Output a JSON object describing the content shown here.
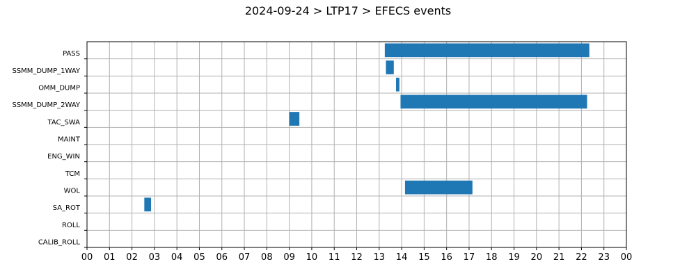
{
  "chart_data": {
    "type": "bar",
    "orientation": "horizontal",
    "subtype": "gantt",
    "title": "2024-09-24 > LTP17 > EFECS events",
    "xlabel": "",
    "ylabel": "",
    "xlim": [
      0,
      24
    ],
    "x_ticks": [
      "00",
      "01",
      "02",
      "03",
      "04",
      "05",
      "06",
      "07",
      "08",
      "09",
      "10",
      "11",
      "12",
      "13",
      "14",
      "15",
      "16",
      "17",
      "18",
      "19",
      "20",
      "21",
      "22",
      "23",
      "00"
    ],
    "categories": [
      "PASS",
      "SSMM_DUMP_1WAY",
      "OMM_DUMP",
      "SSMM_DUMP_2WAY",
      "TAC_SWA",
      "MAINT",
      "ENG_WIN",
      "TCM",
      "WOL",
      "SA_ROT",
      "ROLL",
      "CALIB_ROLL"
    ],
    "events": [
      {
        "category": "PASS",
        "start": 13.25,
        "end": 22.35
      },
      {
        "category": "SSMM_DUMP_1WAY",
        "start": 13.3,
        "end": 13.65
      },
      {
        "category": "OMM_DUMP",
        "start": 13.75,
        "end": 13.9
      },
      {
        "category": "SSMM_DUMP_2WAY",
        "start": 13.95,
        "end": 22.25
      },
      {
        "category": "TAC_SWA",
        "start": 9.0,
        "end": 9.45
      },
      {
        "category": "WOL",
        "start": 14.15,
        "end": 17.15
      },
      {
        "category": "SA_ROT",
        "start": 2.55,
        "end": 2.85
      }
    ],
    "grid": true,
    "colors": {
      "bar": "#1f77b4",
      "grid": "#b0b0b0",
      "axis": "#000000"
    }
  }
}
